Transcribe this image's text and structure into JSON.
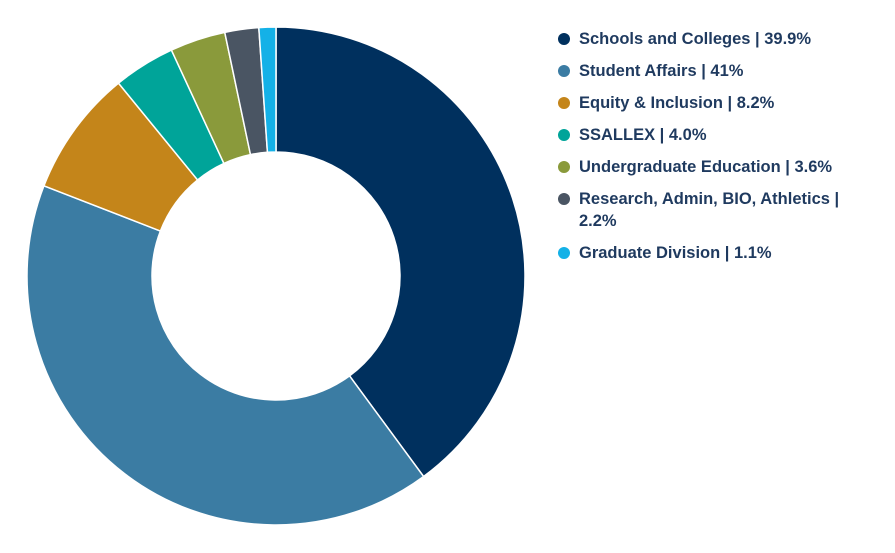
{
  "chart_data": {
    "type": "pie",
    "title": "",
    "donut": true,
    "legend_position": "right",
    "slices": [
      {
        "label": "Schools and Colleges",
        "value": 39.9,
        "legend_text": "Schools and Colleges | 39.9%",
        "color": "#00305e"
      },
      {
        "label": "Student Affairs",
        "value": 41,
        "legend_text": "Student Affairs | 41%",
        "color": "#3b7ca3"
      },
      {
        "label": "Equity & Inclusion",
        "value": 8.2,
        "legend_text": "Equity & Inclusion | 8.2%",
        "color": "#c4851a"
      },
      {
        "label": "SSALLEX",
        "value": 4.0,
        "legend_text": "SSALLEX | 4.0%",
        "color": "#00a499"
      },
      {
        "label": "Undergraduate Education",
        "value": 3.6,
        "legend_text": "Undergraduate Education | 3.6%",
        "color": "#8a9a3b"
      },
      {
        "label": "Research, Admin, BIO, Athletics",
        "value": 2.2,
        "legend_text": "Research, Admin, BIO, Athletics | 2.2%",
        "color": "#4a5563"
      },
      {
        "label": "Graduate Division",
        "value": 1.1,
        "legend_text": "Graduate Division | 1.1%",
        "color": "#14b1e7"
      }
    ]
  }
}
